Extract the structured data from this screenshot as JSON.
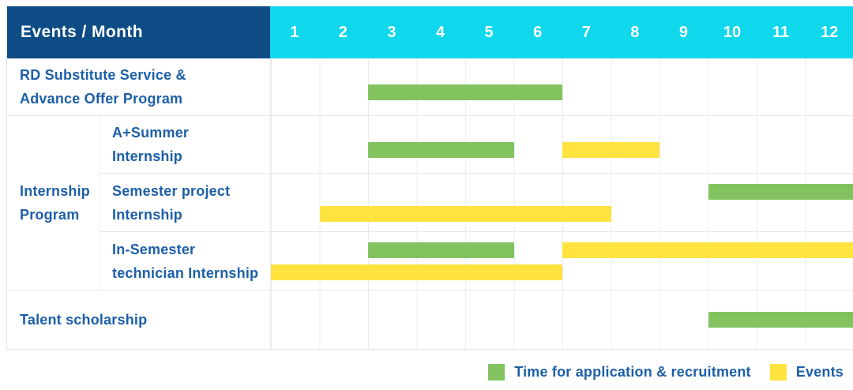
{
  "colors": {
    "navy": "#0d4c84",
    "cyan": "#0fd7ec",
    "green": "#82c360",
    "yellow": "#ffe33e",
    "label_blue": "#1c5fa8"
  },
  "chart_data": {
    "type": "gantt",
    "title": "Events / Month",
    "months": [
      "1",
      "2",
      "3",
      "4",
      "5",
      "6",
      "7",
      "8",
      "9",
      "10",
      "11",
      "12"
    ],
    "x_range": [
      1,
      12
    ],
    "group_label": "Internship\nProgram",
    "rows": [
      {
        "label": "RD Substitute Service &\nAdvance Offer Program",
        "group": null,
        "bars": [
          {
            "color": "green",
            "start": 3,
            "end": 6,
            "lane": "single"
          }
        ]
      },
      {
        "label": "A+Summer\nInternship",
        "group": "Internship Program",
        "bars": [
          {
            "color": "green",
            "start": 3,
            "end": 5,
            "lane": "single"
          },
          {
            "color": "yellow",
            "start": 7,
            "end": 8,
            "lane": "single"
          }
        ]
      },
      {
        "label": "Semester project\nInternship",
        "group": "Internship Program",
        "bars": [
          {
            "color": "green",
            "start": 10,
            "end": 12,
            "lane": "upper"
          },
          {
            "color": "yellow",
            "start": 2,
            "end": 7,
            "lane": "lower"
          }
        ]
      },
      {
        "label": "In-Semester\ntechnician Internship",
        "group": "Internship Program",
        "bars": [
          {
            "color": "green",
            "start": 3,
            "end": 5,
            "lane": "upper"
          },
          {
            "color": "yellow",
            "start": 7,
            "end": 12,
            "lane": "upper"
          },
          {
            "color": "yellow",
            "start": 1,
            "end": 6,
            "lane": "lower"
          }
        ]
      },
      {
        "label": "Talent scholarship",
        "group": null,
        "bars": [
          {
            "color": "green",
            "start": 10,
            "end": 12,
            "lane": "center"
          }
        ]
      }
    ],
    "legend": [
      {
        "color": "green",
        "label": "Time for application & recruitment"
      },
      {
        "color": "yellow",
        "label": "Events"
      }
    ],
    "legend_position": "bottom-right",
    "grid": true
  }
}
